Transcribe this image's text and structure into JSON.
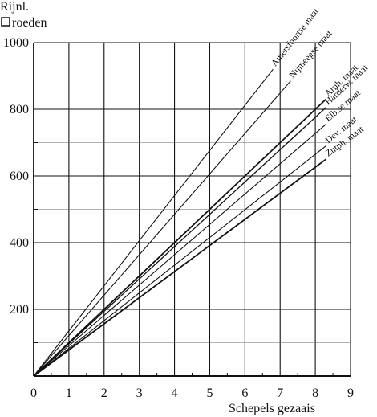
{
  "chart_data": {
    "type": "line",
    "xlabel": "Schepels gezaais",
    "ylabel_line1": "Rijnl.",
    "ylabel_line2": "roeden",
    "xlim": [
      0,
      9
    ],
    "ylim": [
      0,
      1000
    ],
    "x_ticks": [
      0,
      1,
      2,
      3,
      4,
      5,
      6,
      7,
      8,
      9
    ],
    "y_ticks": [
      200,
      400,
      600,
      800,
      1000
    ],
    "grid": true,
    "series": [
      {
        "name": "Amersfoortse maat",
        "x": [
          0,
          6.8
        ],
        "y": [
          0,
          920
        ],
        "stroke": 1.1
      },
      {
        "name": "Nijmeegse maat",
        "x": [
          0,
          7.3
        ],
        "y": [
          0,
          885
        ],
        "stroke": 1.1
      },
      {
        "name": "Arnh. maat",
        "x": [
          0,
          8.3
        ],
        "y": [
          0,
          830
        ],
        "stroke": 1.8
      },
      {
        "name": "Harderw. maat",
        "x": [
          0,
          8.3
        ],
        "y": [
          0,
          805
        ],
        "stroke": 1.3
      },
      {
        "name": "Elb.se maat",
        "x": [
          0,
          8.3
        ],
        "y": [
          0,
          755
        ],
        "stroke": 1.1
      },
      {
        "name": "Dev. maat",
        "x": [
          0,
          8.3
        ],
        "y": [
          0,
          690
        ],
        "stroke": 1.1
      },
      {
        "name": "Zutph. maat",
        "x": [
          0,
          8.3
        ],
        "y": [
          0,
          650
        ],
        "stroke": 1.8
      }
    ]
  }
}
